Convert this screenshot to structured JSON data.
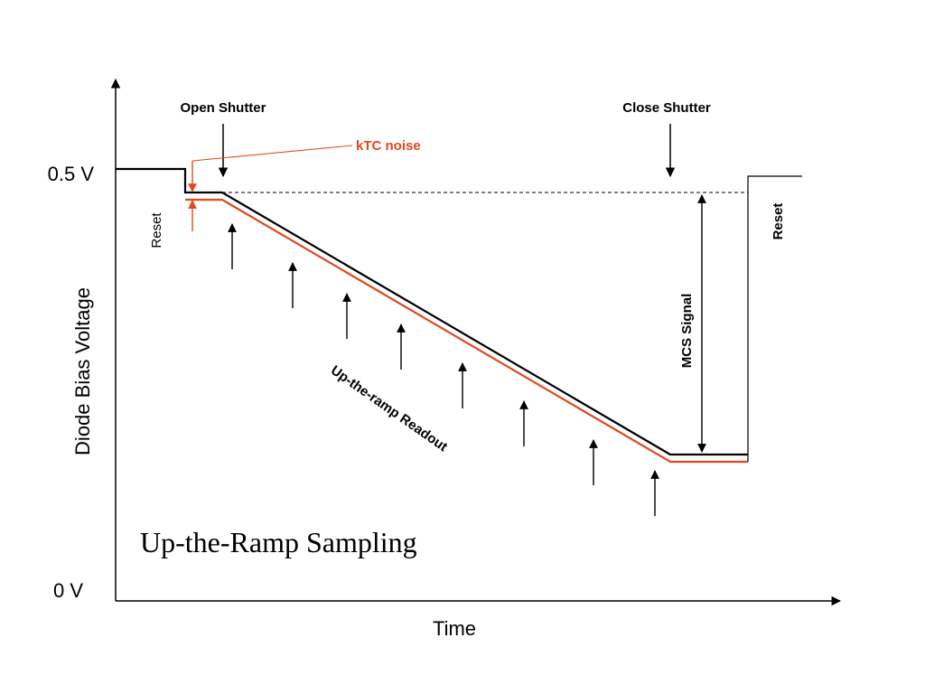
{
  "labels": {
    "y_axis": "Diode Bias Voltage",
    "x_axis": "Time",
    "y_top": "0.5 V",
    "y_bottom": "0 V",
    "open_shutter": "Open Shutter",
    "close_shutter": "Close Shutter",
    "ktc_noise": "kTC noise",
    "reset_left": "Reset",
    "reset_right": "Reset",
    "mcs_signal": "MCS Signal",
    "readout": "Up-the-ramp Readout",
    "title": "Up-the-Ramp Sampling"
  },
  "colors": {
    "signal": "#000000",
    "noise": "#e0481e",
    "axis": "#000000",
    "dashed": "#000000"
  },
  "readout_arrow_count": 8
}
